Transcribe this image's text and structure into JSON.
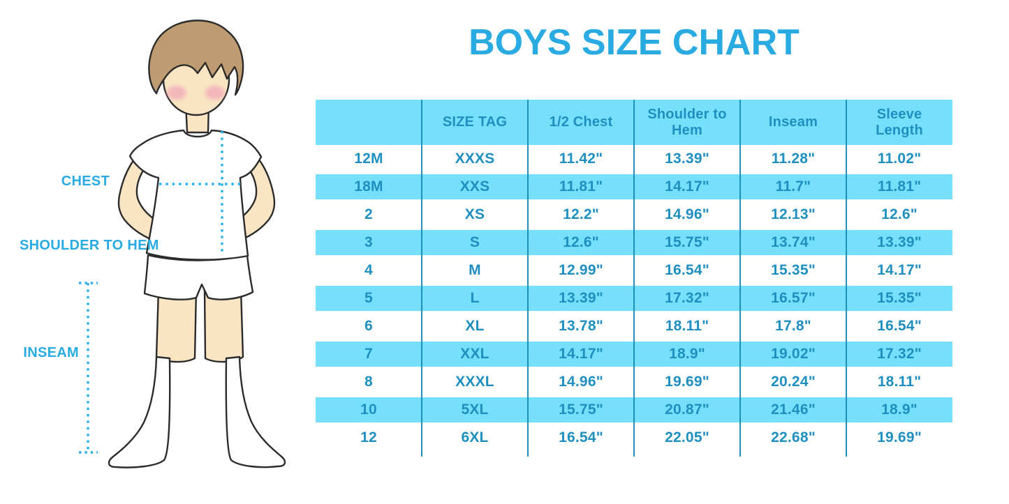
{
  "title": "BOYS SIZE CHART",
  "figure_labels": {
    "chest": "CHEST",
    "shoulder_to_hem": "SHOULDER TO HEM",
    "inseam": "INSEAM"
  },
  "colors": {
    "accent_blue": "#29ABE2",
    "table_text_blue": "#1E8FBF",
    "band_blue": "#76E0FC",
    "dot_blue": "#2BAFE8",
    "skin": "#F9E5C3",
    "hair_brown": "#BE9B71",
    "cheek_pink": "#F2A8B8",
    "outline": "#2B2B2B"
  },
  "chart_data": {
    "type": "table",
    "title": "BOYS SIZE CHART",
    "columns": [
      "",
      "SIZE TAG",
      "1/2 Chest",
      "Shoulder to Hem",
      "Inseam",
      "Sleeve Length"
    ],
    "rows": [
      [
        "12M",
        "XXXS",
        "11.42\"",
        "13.39\"",
        "11.28\"",
        "11.02\""
      ],
      [
        "18M",
        "XXS",
        "11.81\"",
        "14.17\"",
        "11.7\"",
        "11.81\""
      ],
      [
        "2",
        "XS",
        "12.2\"",
        "14.96\"",
        "12.13\"",
        "12.6\""
      ],
      [
        "3",
        "S",
        "12.6\"",
        "15.75\"",
        "13.74\"",
        "13.39\""
      ],
      [
        "4",
        "M",
        "12.99\"",
        "16.54\"",
        "15.35\"",
        "14.17\""
      ],
      [
        "5",
        "L",
        "13.39\"",
        "17.32\"",
        "16.57\"",
        "15.35\""
      ],
      [
        "6",
        "XL",
        "13.78\"",
        "18.11\"",
        "17.8\"",
        "16.54\""
      ],
      [
        "7",
        "XXL",
        "14.17\"",
        "18.9\"",
        "19.02\"",
        "17.32\""
      ],
      [
        "8",
        "XXXL",
        "14.96\"",
        "19.69\"",
        "20.24\"",
        "18.11\""
      ],
      [
        "10",
        "5XL",
        "15.75\"",
        "20.87\"",
        "21.46\"",
        "18.9\""
      ],
      [
        "12",
        "6XL",
        "16.54\"",
        "22.05\"",
        "22.68\"",
        "19.69\""
      ]
    ],
    "row_striping": "alternating white / light-blue bands starting with white",
    "legend_position": "none",
    "grid": "vertical column dividers only, no outer border"
  }
}
